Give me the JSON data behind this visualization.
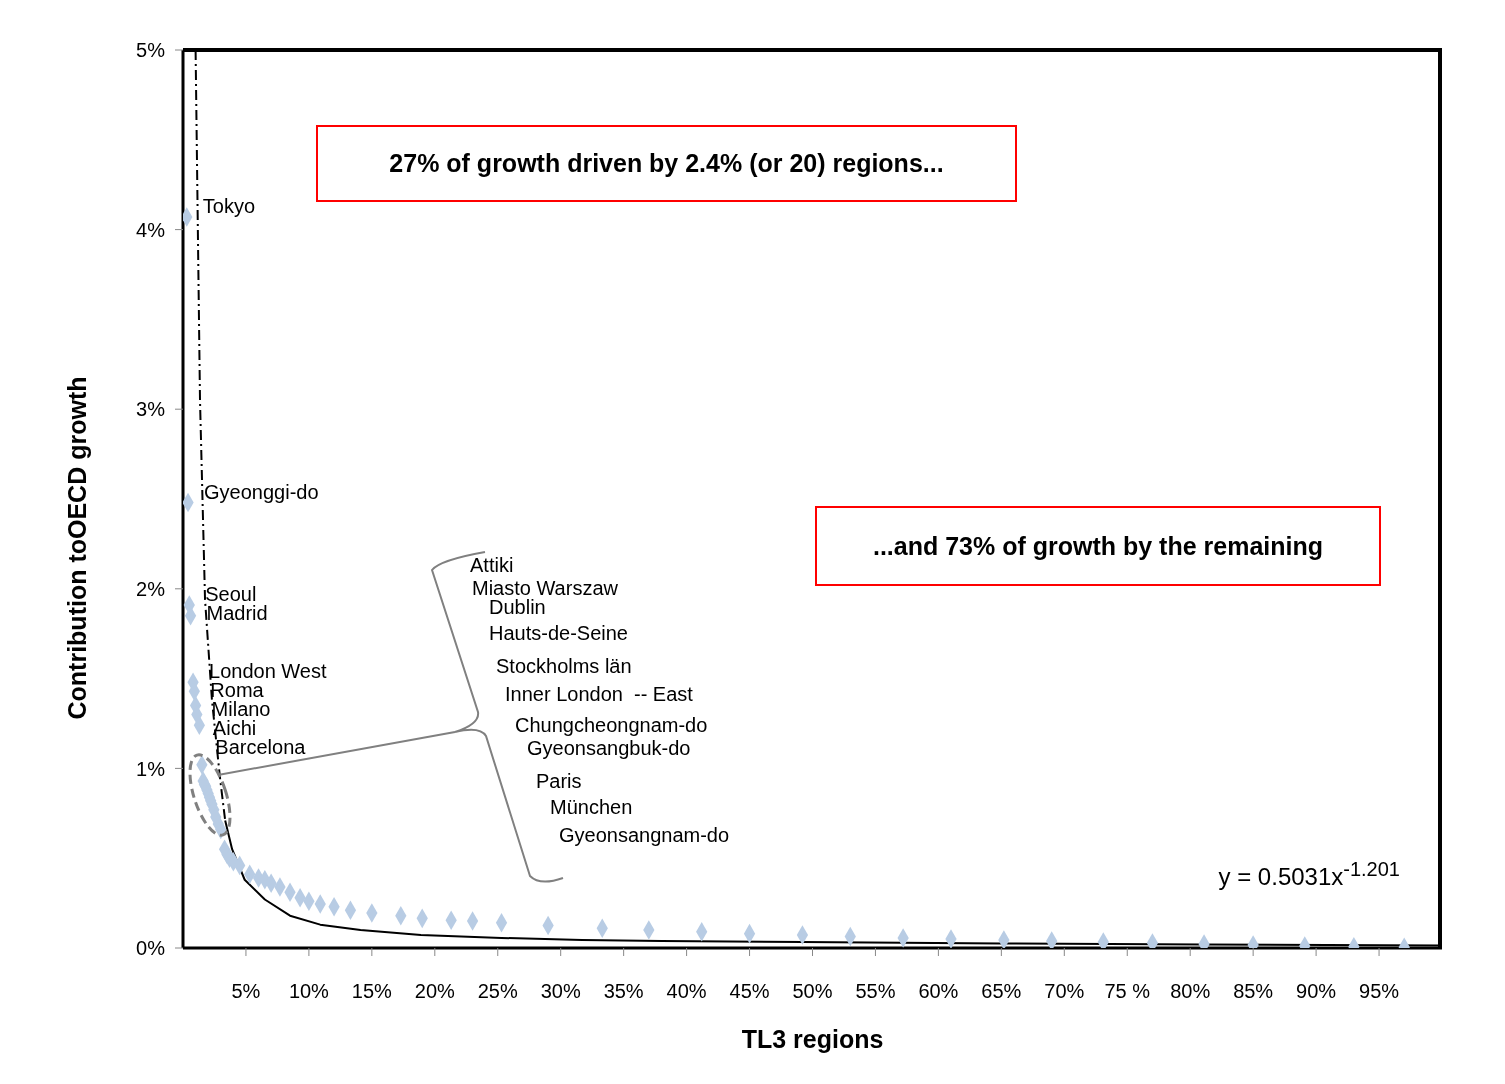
{
  "chart_data": {
    "type": "scatter",
    "xlabel": "TL3 regions",
    "ylabel": "Contribution toOECD growth",
    "xlim": [
      0,
      100
    ],
    "ylim": [
      0,
      5
    ],
    "xticks": [
      {
        "value": 5,
        "label": "5%"
      },
      {
        "value": 10,
        "label": "10%"
      },
      {
        "value": 15,
        "label": "15%"
      },
      {
        "value": 20,
        "label": "20%"
      },
      {
        "value": 25,
        "label": "25%"
      },
      {
        "value": 30,
        "label": "30%"
      },
      {
        "value": 35,
        "label": "35%"
      },
      {
        "value": 40,
        "label": "40%"
      },
      {
        "value": 45,
        "label": "45%"
      },
      {
        "value": 50,
        "label": "50%"
      },
      {
        "value": 55,
        "label": "55%"
      },
      {
        "value": 60,
        "label": "60%"
      },
      {
        "value": 65,
        "label": "65%"
      },
      {
        "value": 70,
        "label": "70%"
      },
      {
        "value": 75,
        "label": "75 %"
      },
      {
        "value": 80,
        "label": "80%"
      },
      {
        "value": 85,
        "label": "85%"
      },
      {
        "value": 90,
        "label": "90%"
      },
      {
        "value": 95,
        "label": "95%"
      }
    ],
    "yticks": [
      {
        "value": 0,
        "label": "0%"
      },
      {
        "value": 1,
        "label": "1%"
      },
      {
        "value": 2,
        "label": "2%"
      },
      {
        "value": 3,
        "label": "3%"
      },
      {
        "value": 4,
        "label": "4%"
      },
      {
        "value": 5,
        "label": "5%"
      }
    ],
    "grid": false,
    "legend": false,
    "series": [
      {
        "type": "scatter",
        "color": "#b8cce4",
        "marker": "diamond",
        "x": [
          0.3,
          0.4,
          0.5,
          0.6,
          0.8,
          0.9,
          1.0,
          1.1,
          1.3,
          1.5,
          1.6,
          1.7,
          1.8,
          1.9,
          2.0,
          2.1,
          2.2,
          2.3,
          2.45,
          2.6,
          2.8,
          3.0,
          3.3,
          3.5,
          3.7,
          4.0,
          4.5,
          5.3,
          6.0,
          6.5,
          7.0,
          7.7,
          8.5,
          9.3,
          10,
          10.9,
          12,
          13.3,
          15,
          17.3,
          19,
          21.3,
          23,
          25.3,
          29,
          33.3,
          37,
          41.2,
          45,
          49.2,
          53,
          57.2,
          61,
          65.2,
          69,
          73.1,
          77,
          81.1,
          85,
          89.1,
          93,
          97
        ],
        "values": [
          4.07,
          2.48,
          1.91,
          1.85,
          1.48,
          1.43,
          1.35,
          1.3,
          1.24,
          1.02,
          0.93,
          0.91,
          0.9,
          0.88,
          0.86,
          0.84,
          0.82,
          0.8,
          0.77,
          0.73,
          0.69,
          0.66,
          0.55,
          0.52,
          0.5,
          0.48,
          0.46,
          0.41,
          0.39,
          0.38,
          0.36,
          0.34,
          0.31,
          0.28,
          0.26,
          0.245,
          0.23,
          0.21,
          0.195,
          0.18,
          0.165,
          0.155,
          0.15,
          0.14,
          0.125,
          0.11,
          0.1,
          0.09,
          0.08,
          0.072,
          0.064,
          0.056,
          0.05,
          0.045,
          0.039,
          0.033,
          0.028,
          0.022,
          0.017,
          0.011,
          0.007,
          0.004
        ]
      },
      {
        "type": "line",
        "color": "#000000",
        "marker": "none",
        "line_style": "dashed",
        "x": [
          1.0,
          1.35,
          1.75,
          2.3,
          2.95,
          3.35
        ],
        "values": [
          5.0,
          3.05,
          1.94,
          1.38,
          0.94,
          0.71
        ]
      },
      {
        "type": "line",
        "color": "#000000",
        "marker": "none",
        "line_style": "solid",
        "x": [
          3.35,
          3.9,
          4.9,
          6.5,
          8.5,
          10.9,
          14.1,
          18.9,
          25.3,
          31.7,
          38,
          49.2,
          65,
          81,
          100
        ],
        "values": [
          0.71,
          0.55,
          0.38,
          0.27,
          0.18,
          0.13,
          0.1,
          0.072,
          0.056,
          0.045,
          0.039,
          0.033,
          0.025,
          0.02,
          0.014
        ]
      }
    ],
    "annotations": [
      "27% of growth driven by 2.4% (or 20) regions...",
      "...and 73% of growth by the remaining",
      "y = 0.5031x$^{-1.201}$",
      "Attiki",
      "Miasto Warszaw",
      "Dublin",
      "Hauts-de-Seine",
      "Stockholms län",
      "Inner London  -- East",
      "Chungcheongnam-do",
      "Gyeonsangbuk-do",
      "Paris",
      "München",
      "Gyeonsangnam-do",
      {
        "text": "Tokyo",
        "x": 0.3,
        "y": 4.07
      },
      {
        "text": "Gyeonggi-do",
        "x": 0.4,
        "y": 2.48
      },
      {
        "text": "Seoul",
        "x": 0.5,
        "y": 1.91
      },
      {
        "text": "Madrid",
        "x": 0.6,
        "y": 1.85
      },
      {
        "text": "London West",
        "x": 0.8,
        "y": 1.48
      },
      {
        "text": "Roma",
        "x": 0.9,
        "y": 1.43
      },
      {
        "text": "Milano",
        "x": 1.0,
        "y": 1.35
      },
      {
        "text": "Aichi",
        "x": 1.1,
        "y": 1.3
      },
      {
        "text": "Barcelona",
        "x": 1.3,
        "y": 1.24
      }
    ]
  }
}
